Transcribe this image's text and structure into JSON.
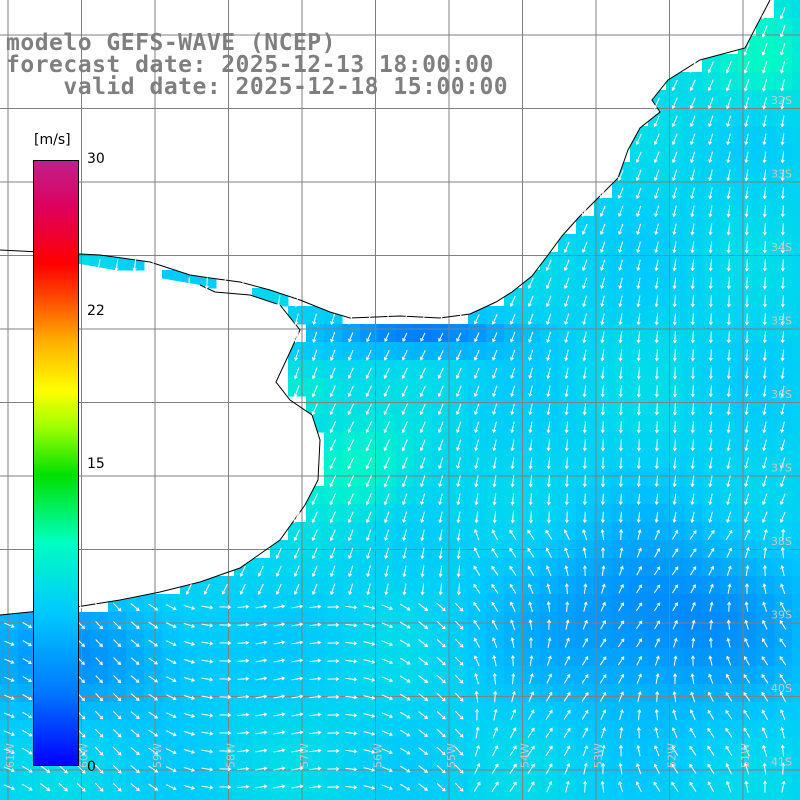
{
  "title": {
    "line1": "modelo GEFS-WAVE (NCEP)",
    "line2": "forecast date: 2025-12-13 18:00:00",
    "line3": "    valid date: 2025-12-18 15:00:00"
  },
  "colorbar": {
    "unit": "[m/s]",
    "min": 0,
    "max": 30,
    "ticks": [
      "30",
      "22",
      "15",
      "0"
    ],
    "tick_values": [
      30,
      22,
      15,
      0
    ],
    "colors": [
      "#0000ff",
      "#00c8ff",
      "#00ffc0",
      "#00e000",
      "#ffff00",
      "#ff0000",
      "#c0208a"
    ]
  },
  "map": {
    "lat_labels": [
      "32S",
      "33S",
      "34S",
      "35S",
      "36S",
      "37S",
      "38S",
      "39S",
      "40S",
      "41S"
    ],
    "lon_labels": [
      "61W",
      "60W",
      "59W",
      "58W",
      "57W",
      "56W",
      "55W",
      "54W",
      "53W",
      "52W",
      "51W"
    ],
    "land_color": "#ffffff",
    "grid_color": "#808080",
    "arrow_color": "#ffffff"
  }
}
